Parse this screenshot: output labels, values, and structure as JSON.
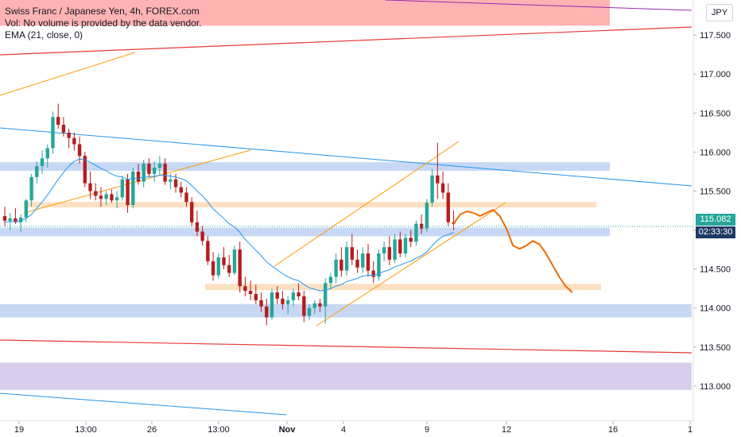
{
  "legend": {
    "title": "Swiss Franc / Japanese Yen, 4h, FOREX.com",
    "volume_note": "Vol: No volume is provided by the data vendor.",
    "indicator": "EMA (21, close, 0)"
  },
  "currency_button": "JPY",
  "last_price": "115.082",
  "countdown": "02:33:30",
  "colors": {
    "up": "#26a69a",
    "down": "#b71c1c",
    "ema": "#2196f3",
    "blue_zone": "#c7d8f5",
    "orange_zone": "#fde0c2",
    "red_zone": "#ffb3b3",
    "purple_zone": "#d9cdeb",
    "projection": "#ef6c00",
    "price_tag": "#26a69a",
    "countdown_tag": "#1e3a66"
  },
  "chart_data": {
    "type": "candlestick",
    "y_ticks": [
      "117.500",
      "117.000",
      "116.500",
      "116.000",
      "115.500",
      "115.000",
      "114.500",
      "114.000",
      "113.500",
      "113.000"
    ],
    "x_ticks": [
      "19",
      "13:00",
      "26",
      "13:00",
      "Nov",
      "4",
      "9",
      "12",
      "16",
      "1"
    ],
    "ylim": [
      112.55,
      117.95
    ],
    "zones": [
      {
        "kind": "blue",
        "from": 115.76,
        "to": 115.87
      },
      {
        "kind": "orange",
        "from": 115.29,
        "to": 115.36
      },
      {
        "kind": "blue",
        "from": 114.92,
        "to": 115.03
      },
      {
        "kind": "orange",
        "from": 114.23,
        "to": 114.31
      },
      {
        "kind": "blue",
        "from": 113.88,
        "to": 114.05
      },
      {
        "kind": "purple",
        "from": 112.95,
        "to": 113.3
      },
      {
        "kind": "red",
        "from": 117.62,
        "to": 117.95
      }
    ],
    "candles": [
      [
        115.18,
        115.3,
        115.05,
        115.12
      ],
      [
        115.12,
        115.22,
        115.0,
        115.15
      ],
      [
        115.15,
        115.28,
        115.08,
        115.1
      ],
      [
        115.1,
        115.2,
        114.98,
        115.16
      ],
      [
        115.16,
        115.4,
        115.1,
        115.38
      ],
      [
        115.38,
        115.72,
        115.3,
        115.68
      ],
      [
        115.68,
        115.88,
        115.6,
        115.82
      ],
      [
        115.82,
        116.02,
        115.72,
        115.92
      ],
      [
        115.92,
        116.1,
        115.8,
        116.05
      ],
      [
        116.05,
        116.52,
        115.98,
        116.45
      ],
      [
        116.45,
        116.62,
        116.3,
        116.35
      ],
      [
        116.35,
        116.45,
        116.2,
        116.25
      ],
      [
        116.25,
        116.3,
        116.05,
        116.18
      ],
      [
        116.18,
        116.25,
        116.02,
        116.1
      ],
      [
        116.1,
        116.2,
        115.85,
        115.95
      ],
      [
        115.95,
        116.0,
        115.55,
        115.6
      ],
      [
        115.6,
        115.75,
        115.4,
        115.5
      ],
      [
        115.5,
        115.6,
        115.38,
        115.44
      ],
      [
        115.44,
        115.55,
        115.3,
        115.4
      ],
      [
        115.4,
        115.5,
        115.32,
        115.46
      ],
      [
        115.46,
        115.52,
        115.35,
        115.38
      ],
      [
        115.38,
        115.5,
        115.28,
        115.42
      ],
      [
        115.42,
        115.7,
        115.38,
        115.65
      ],
      [
        115.65,
        115.72,
        115.22,
        115.32
      ],
      [
        115.32,
        115.8,
        115.28,
        115.75
      ],
      [
        115.75,
        115.85,
        115.58,
        115.62
      ],
      [
        115.62,
        115.9,
        115.55,
        115.85
      ],
      [
        115.85,
        115.92,
        115.68,
        115.72
      ],
      [
        115.72,
        115.88,
        115.62,
        115.8
      ],
      [
        115.8,
        115.95,
        115.7,
        115.85
      ],
      [
        115.85,
        115.92,
        115.58,
        115.62
      ],
      [
        115.62,
        115.72,
        115.52,
        115.65
      ],
      [
        115.65,
        115.72,
        115.48,
        115.55
      ],
      [
        115.55,
        115.62,
        115.42,
        115.48
      ],
      [
        115.48,
        115.55,
        115.3,
        115.36
      ],
      [
        115.36,
        115.42,
        115.05,
        115.1
      ],
      [
        115.1,
        115.25,
        114.92,
        114.98
      ],
      [
        114.98,
        115.05,
        114.8,
        114.86
      ],
      [
        114.86,
        114.92,
        114.55,
        114.6
      ],
      [
        114.6,
        114.72,
        114.35,
        114.42
      ],
      [
        114.42,
        114.7,
        114.38,
        114.65
      ],
      [
        114.65,
        114.78,
        114.5,
        114.55
      ],
      [
        114.55,
        114.68,
        114.4,
        114.45
      ],
      [
        114.45,
        114.8,
        114.42,
        114.75
      ],
      [
        114.75,
        114.85,
        114.2,
        114.28
      ],
      [
        114.28,
        114.4,
        114.15,
        114.22
      ],
      [
        114.22,
        114.35,
        114.1,
        114.18
      ],
      [
        114.18,
        114.3,
        114.05,
        114.1
      ],
      [
        114.1,
        114.2,
        113.95,
        114.02
      ],
      [
        114.02,
        114.12,
        113.78,
        113.88
      ],
      [
        113.88,
        114.25,
        113.85,
        114.2
      ],
      [
        114.2,
        114.28,
        114.05,
        114.12
      ],
      [
        114.12,
        114.22,
        113.98,
        114.05
      ],
      [
        114.05,
        114.15,
        113.92,
        114.1
      ],
      [
        114.1,
        114.25,
        114.02,
        114.2
      ],
      [
        114.2,
        114.32,
        114.1,
        114.15
      ],
      [
        114.15,
        114.22,
        113.82,
        113.9
      ],
      [
        113.9,
        114.05,
        113.85,
        114.0
      ],
      [
        114.0,
        114.1,
        113.92,
        114.06
      ],
      [
        114.06,
        114.12,
        113.95,
        114.02
      ],
      [
        114.02,
        114.38,
        113.8,
        114.32
      ],
      [
        114.32,
        114.45,
        114.25,
        114.4
      ],
      [
        114.4,
        114.7,
        114.32,
        114.62
      ],
      [
        114.62,
        114.78,
        114.4,
        114.48
      ],
      [
        114.48,
        114.85,
        114.42,
        114.78
      ],
      [
        114.78,
        114.95,
        114.55,
        114.62
      ],
      [
        114.62,
        114.75,
        114.45,
        114.52
      ],
      [
        114.52,
        114.78,
        114.45,
        114.7
      ],
      [
        114.7,
        114.82,
        114.4,
        114.48
      ],
      [
        114.48,
        114.6,
        114.32,
        114.4
      ],
      [
        114.4,
        114.75,
        114.35,
        114.7
      ],
      [
        114.7,
        114.85,
        114.6,
        114.78
      ],
      [
        114.78,
        114.92,
        114.55,
        114.62
      ],
      [
        114.62,
        114.95,
        114.58,
        114.88
      ],
      [
        114.88,
        114.98,
        114.65,
        114.7
      ],
      [
        114.7,
        114.95,
        114.65,
        114.9
      ],
      [
        114.9,
        115.0,
        114.78,
        114.85
      ],
      [
        114.85,
        115.12,
        114.8,
        115.08
      ],
      [
        115.08,
        115.2,
        114.95,
        115.02
      ],
      [
        115.02,
        115.4,
        114.98,
        115.35
      ],
      [
        115.35,
        115.78,
        115.3,
        115.7
      ],
      [
        115.7,
        116.12,
        115.4,
        115.6
      ],
      [
        115.6,
        115.75,
        115.4,
        115.48
      ],
      [
        115.48,
        115.6,
        115.05,
        115.1
      ],
      [
        115.1,
        115.25,
        115.0,
        115.08
      ]
    ],
    "ema": [
      [
        115.1,
        115.11,
        115.11,
        115.12,
        115.15,
        115.2,
        115.28,
        115.36,
        115.45,
        115.55,
        115.65,
        115.74,
        115.82,
        115.88,
        115.91,
        115.9,
        115.87,
        115.83,
        115.79,
        115.76,
        115.72,
        115.69,
        115.68,
        115.65,
        115.66,
        115.66,
        115.68,
        115.68,
        115.69,
        115.7,
        115.7,
        115.69,
        115.68,
        115.66,
        115.63,
        115.57,
        115.5,
        115.44,
        115.36,
        115.27,
        115.21,
        115.15,
        115.08,
        115.04,
        114.97,
        114.88,
        114.81,
        114.74,
        114.67,
        114.59,
        114.54,
        114.49,
        114.44,
        114.4,
        114.37,
        114.35,
        114.3,
        114.26,
        114.24,
        114.22,
        114.23,
        114.25,
        114.28,
        114.3,
        114.34,
        114.36,
        114.38,
        114.41,
        114.42,
        114.42,
        114.44,
        114.47,
        114.49,
        114.53,
        114.55,
        114.58,
        114.6,
        114.64,
        114.67,
        114.72,
        114.8,
        114.87,
        114.92,
        114.94,
        114.97
      ]
    ],
    "projection": [
      [
        0,
        115.08
      ],
      [
        1,
        115.2
      ],
      [
        2,
        115.24
      ],
      [
        3,
        115.22
      ],
      [
        4,
        115.18
      ],
      [
        5,
        115.22
      ],
      [
        6,
        115.26
      ],
      [
        7,
        115.18
      ],
      [
        8,
        115.02
      ],
      [
        9,
        114.8
      ],
      [
        10,
        114.76
      ],
      [
        11,
        114.8
      ],
      [
        12,
        114.86
      ],
      [
        13,
        114.82
      ],
      [
        14,
        114.7
      ],
      [
        15,
        114.55
      ],
      [
        16,
        114.4
      ],
      [
        17,
        114.28
      ],
      [
        18,
        114.2
      ]
    ]
  }
}
